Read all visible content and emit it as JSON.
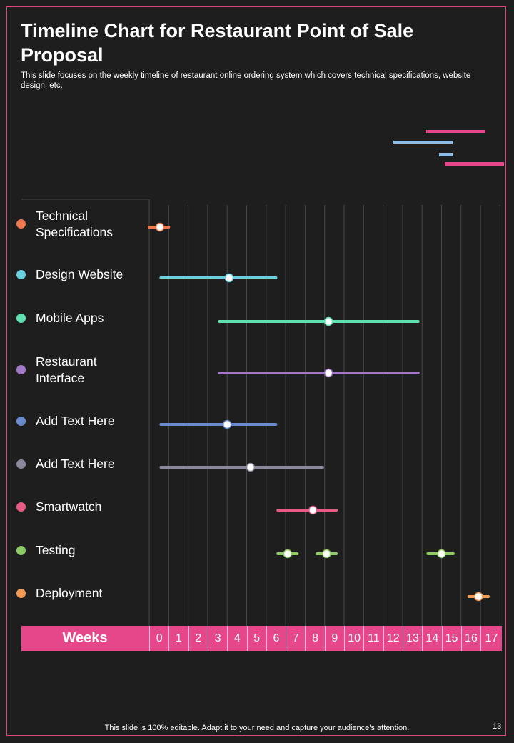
{
  "slide": {
    "title": "Timeline Chart for Restaurant Point of Sale Proposal",
    "subtitle": "This slide focuses on the weekly timeline of restaurant online ordering system which covers technical specifications, website design, etc.",
    "footer": "This slide is 100% editable. Adapt it to your need and capture your audience’s attention.",
    "page_number": "13"
  },
  "colors": {
    "background": "#1e1e1f",
    "accent": "#e5478a",
    "frame": "#d9457e"
  },
  "chart_data": {
    "type": "timeline",
    "axis_label": "Weeks",
    "weeks": [
      "0",
      "1",
      "2",
      "3",
      "4",
      "5",
      "6",
      "7",
      "8",
      "9",
      "10",
      "11",
      "12",
      "13",
      "14",
      "15",
      "16",
      "17"
    ],
    "tasks": [
      {
        "label": "Technical Specifications",
        "color": "#f0784f",
        "segments": [
          {
            "start": -0.5,
            "end": 0.5,
            "marker": 0.05
          }
        ]
      },
      {
        "label": "Design Website",
        "color": "#6ad0e0",
        "segments": [
          {
            "start": 0.1,
            "end": 6.0,
            "marker": 3.6
          }
        ]
      },
      {
        "label": "Mobile Apps",
        "color": "#5fe0b0",
        "segments": [
          {
            "start": 3.1,
            "end": 13.3,
            "marker": 8.7
          }
        ]
      },
      {
        "label": "Restaurant Interface",
        "color": "#a279c9",
        "segments": [
          {
            "start": 3.1,
            "end": 13.3,
            "marker": 8.7
          }
        ]
      },
      {
        "label": "Add Text Here",
        "color": "#6a8ccc",
        "segments": [
          {
            "start": 0.1,
            "end": 6.0,
            "marker": 3.5
          }
        ]
      },
      {
        "label": "Add Text Here",
        "color": "#8a8a9c",
        "segments": [
          {
            "start": 0.1,
            "end": 8.4,
            "marker": 4.7
          }
        ]
      },
      {
        "label": "Smartwatch",
        "color": "#e85b84",
        "segments": [
          {
            "start": 6.1,
            "end": 9.1,
            "marker": 7.9
          }
        ]
      },
      {
        "label": "Testing",
        "color": "#8ccc64",
        "segments": [
          {
            "start": 6.1,
            "end": 7.1,
            "marker": 6.6
          },
          {
            "start": 8.1,
            "end": 9.1,
            "marker": 8.6
          },
          {
            "start": 13.8,
            "end": 15.1,
            "marker": 14.5
          }
        ]
      },
      {
        "label": "Deployment",
        "color": "#f59a55",
        "segments": [
          {
            "start": 15.9,
            "end": 16.9,
            "marker": 16.4
          }
        ]
      }
    ]
  }
}
